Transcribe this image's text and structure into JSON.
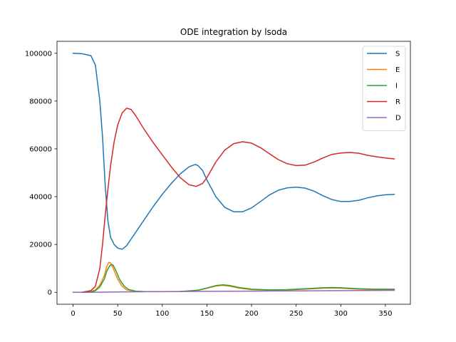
{
  "chart_data": {
    "type": "line",
    "title": "ODE integration by lsoda",
    "xlabel": "",
    "ylabel": "",
    "xlim": [
      -18,
      378
    ],
    "ylim": [
      -5000,
      105000
    ],
    "xticks": [
      0,
      50,
      100,
      150,
      200,
      250,
      300,
      350
    ],
    "yticks": [
      0,
      20000,
      40000,
      60000,
      80000,
      100000
    ],
    "legend": "top-right",
    "grid": false,
    "series": [
      {
        "name": "S",
        "color": "#1f77b4",
        "points": [
          [
            0,
            100000
          ],
          [
            10,
            99800
          ],
          [
            20,
            99000
          ],
          [
            25,
            95000
          ],
          [
            30,
            80000
          ],
          [
            33,
            65000
          ],
          [
            36,
            45000
          ],
          [
            39,
            30000
          ],
          [
            42,
            23000
          ],
          [
            46,
            20000
          ],
          [
            50,
            18500
          ],
          [
            55,
            18000
          ],
          [
            60,
            19500
          ],
          [
            70,
            25000
          ],
          [
            80,
            30500
          ],
          [
            90,
            36000
          ],
          [
            100,
            41000
          ],
          [
            110,
            45500
          ],
          [
            120,
            49500
          ],
          [
            130,
            52500
          ],
          [
            137,
            53500
          ],
          [
            140,
            53000
          ],
          [
            145,
            51000
          ],
          [
            150,
            47000
          ],
          [
            160,
            40000
          ],
          [
            170,
            35500
          ],
          [
            180,
            33700
          ],
          [
            190,
            33700
          ],
          [
            200,
            35300
          ],
          [
            210,
            38000
          ],
          [
            220,
            40700
          ],
          [
            230,
            42700
          ],
          [
            240,
            43700
          ],
          [
            250,
            44000
          ],
          [
            260,
            43600
          ],
          [
            270,
            42300
          ],
          [
            280,
            40400
          ],
          [
            290,
            38800
          ],
          [
            300,
            38000
          ],
          [
            310,
            38000
          ],
          [
            320,
            38500
          ],
          [
            330,
            39500
          ],
          [
            340,
            40300
          ],
          [
            350,
            40800
          ],
          [
            360,
            41000
          ]
        ]
      },
      {
        "name": "E",
        "color": "#ff7f0e",
        "points": [
          [
            0,
            0
          ],
          [
            10,
            40
          ],
          [
            20,
            250
          ],
          [
            25,
            1000
          ],
          [
            30,
            3000
          ],
          [
            35,
            7000
          ],
          [
            38,
            11000
          ],
          [
            40,
            12500
          ],
          [
            42,
            12300
          ],
          [
            45,
            10000
          ],
          [
            50,
            5500
          ],
          [
            55,
            2500
          ],
          [
            60,
            1000
          ],
          [
            70,
            400
          ],
          [
            80,
            300
          ],
          [
            100,
            250
          ],
          [
            120,
            300
          ],
          [
            140,
            800
          ],
          [
            150,
            1700
          ],
          [
            160,
            2600
          ],
          [
            167,
            2900
          ],
          [
            175,
            2600
          ],
          [
            185,
            1800
          ],
          [
            200,
            1100
          ],
          [
            220,
            900
          ],
          [
            240,
            1000
          ],
          [
            260,
            1300
          ],
          [
            280,
            1700
          ],
          [
            290,
            1800
          ],
          [
            300,
            1700
          ],
          [
            320,
            1300
          ],
          [
            340,
            1100
          ],
          [
            360,
            1100
          ]
        ]
      },
      {
        "name": "I",
        "color": "#2ca02c",
        "points": [
          [
            0,
            0
          ],
          [
            10,
            30
          ],
          [
            20,
            200
          ],
          [
            25,
            700
          ],
          [
            30,
            2200
          ],
          [
            35,
            5500
          ],
          [
            38,
            9000
          ],
          [
            41,
            11000
          ],
          [
            43,
            11700
          ],
          [
            45,
            11300
          ],
          [
            48,
            9000
          ],
          [
            52,
            5500
          ],
          [
            57,
            2700
          ],
          [
            62,
            1200
          ],
          [
            70,
            500
          ],
          [
            80,
            300
          ],
          [
            100,
            280
          ],
          [
            120,
            350
          ],
          [
            140,
            900
          ],
          [
            150,
            1800
          ],
          [
            160,
            2800
          ],
          [
            168,
            3100
          ],
          [
            176,
            2800
          ],
          [
            186,
            2000
          ],
          [
            200,
            1300
          ],
          [
            220,
            1000
          ],
          [
            240,
            1100
          ],
          [
            260,
            1500
          ],
          [
            280,
            1900
          ],
          [
            290,
            2000
          ],
          [
            300,
            1900
          ],
          [
            320,
            1500
          ],
          [
            340,
            1300
          ],
          [
            360,
            1300
          ]
        ]
      },
      {
        "name": "R",
        "color": "#d62728",
        "points": [
          [
            0,
            0
          ],
          [
            10,
            50
          ],
          [
            20,
            700
          ],
          [
            25,
            2500
          ],
          [
            30,
            10000
          ],
          [
            33,
            20000
          ],
          [
            36,
            32000
          ],
          [
            39,
            43000
          ],
          [
            42,
            53000
          ],
          [
            46,
            63000
          ],
          [
            50,
            70000
          ],
          [
            55,
            75000
          ],
          [
            60,
            77000
          ],
          [
            65,
            76500
          ],
          [
            70,
            74000
          ],
          [
            80,
            68000
          ],
          [
            90,
            62500
          ],
          [
            100,
            57500
          ],
          [
            110,
            52500
          ],
          [
            120,
            48000
          ],
          [
            130,
            45000
          ],
          [
            138,
            44300
          ],
          [
            145,
            45500
          ],
          [
            150,
            48000
          ],
          [
            160,
            54500
          ],
          [
            170,
            59500
          ],
          [
            180,
            62200
          ],
          [
            190,
            63000
          ],
          [
            200,
            62400
          ],
          [
            210,
            60500
          ],
          [
            220,
            58000
          ],
          [
            230,
            55500
          ],
          [
            240,
            53800
          ],
          [
            250,
            53000
          ],
          [
            260,
            53200
          ],
          [
            270,
            54500
          ],
          [
            280,
            56200
          ],
          [
            290,
            57700
          ],
          [
            300,
            58300
          ],
          [
            310,
            58500
          ],
          [
            320,
            58200
          ],
          [
            330,
            57300
          ],
          [
            340,
            56700
          ],
          [
            350,
            56200
          ],
          [
            360,
            55800
          ]
        ]
      },
      {
        "name": "D",
        "color": "#9467bd",
        "points": [
          [
            0,
            0
          ],
          [
            20,
            0
          ],
          [
            40,
            100
          ],
          [
            60,
            200
          ],
          [
            100,
            300
          ],
          [
            150,
            400
          ],
          [
            200,
            500
          ],
          [
            250,
            600
          ],
          [
            300,
            700
          ],
          [
            360,
            800
          ]
        ]
      }
    ]
  }
}
